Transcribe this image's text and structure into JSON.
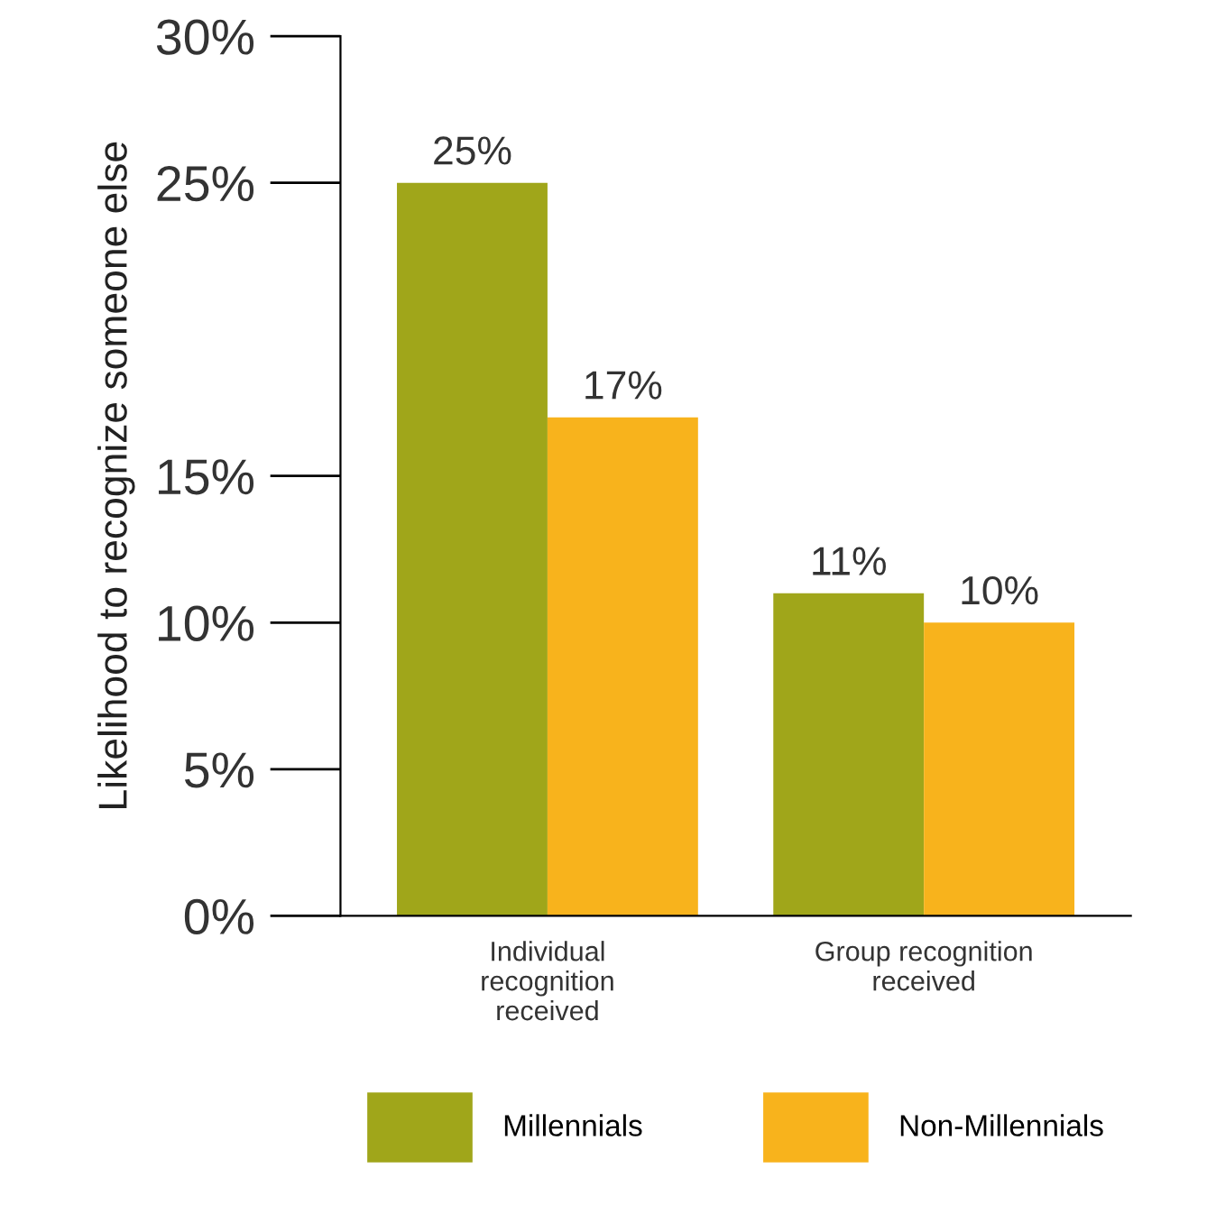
{
  "chart_data": {
    "type": "bar",
    "ylabel": "Likelihood to recognize someone else",
    "categories": [
      "Individual\nrecognition\nreceived",
      "Group recognition\nreceived"
    ],
    "series": [
      {
        "name": "Millennials",
        "color": "#a0a61a",
        "values": [
          25,
          11
        ]
      },
      {
        "name": "Non-Millennials",
        "color": "#f8b31c",
        "values": [
          17,
          10
        ]
      }
    ],
    "ylim": [
      0,
      30
    ],
    "yticks": [
      {
        "value": 0,
        "label": "0%"
      },
      {
        "value": 5,
        "label": "5%"
      },
      {
        "value": 10,
        "label": "10%"
      },
      {
        "value": 15,
        "label": "15%"
      },
      {
        "value": 25,
        "label": "25%"
      },
      {
        "value": 30,
        "label": "30%"
      }
    ],
    "value_labels": [
      [
        "25%",
        "11%"
      ],
      [
        "17%",
        "10%"
      ]
    ],
    "legend": "bottom",
    "grid": false
  }
}
